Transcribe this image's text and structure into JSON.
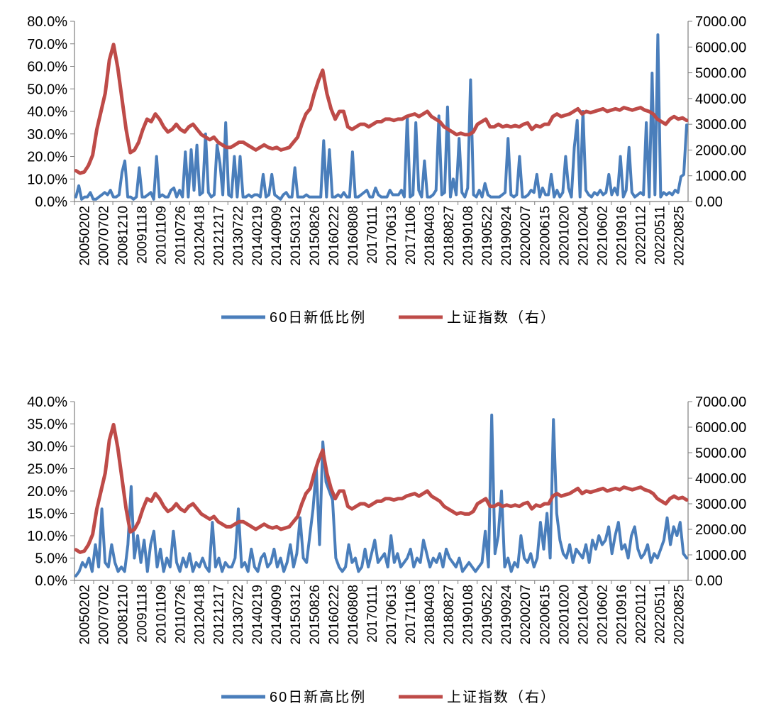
{
  "colors": {
    "blue": "#4a7ebb",
    "red": "#be4b48",
    "axis": "#7f7f7f"
  },
  "chart_data": [
    {
      "type": "line",
      "y_left": {
        "ticks": [
          "0.0%",
          "10.0%",
          "20.0%",
          "30.0%",
          "40.0%",
          "50.0%",
          "60.0%",
          "70.0%",
          "80.0%"
        ],
        "lim": [
          0,
          80
        ]
      },
      "y_right": {
        "ticks": [
          "0.00",
          "1000.00",
          "2000.00",
          "3000.00",
          "4000.00",
          "5000.00",
          "6000.00",
          "7000.00"
        ],
        "lim": [
          0,
          7000
        ]
      },
      "x_ticks": [
        "20050202",
        "20070702",
        "20081210",
        "20091118",
        "20101109",
        "20110726",
        "20120418",
        "20121217",
        "20130722",
        "20140219",
        "20140909",
        "20150312",
        "20150826",
        "20160222",
        "20160808",
        "20170111",
        "20170613",
        "20171106",
        "20180403",
        "20180827",
        "20190108",
        "20190522",
        "20190924",
        "20200207",
        "20200615",
        "20201020",
        "20210204",
        "20210602",
        "20210916",
        "20220112",
        "20220511",
        "20220825"
      ],
      "series": [
        {
          "name": "60日新低比例",
          "axis": "left",
          "color": "blue",
          "values": [
            2,
            7,
            1,
            2,
            2,
            4,
            1,
            1,
            2,
            3,
            4,
            3,
            5,
            2,
            2,
            3,
            13,
            18,
            2,
            2,
            1,
            2,
            15,
            2,
            2,
            3,
            4,
            1,
            20,
            2,
            3,
            2,
            2,
            5,
            6,
            2,
            5,
            2,
            22,
            2,
            23,
            5,
            25,
            3,
            4,
            30,
            4,
            2,
            3,
            25,
            17,
            3,
            35,
            3,
            2,
            20,
            2,
            20,
            2,
            2,
            3,
            2,
            3,
            3,
            2,
            12,
            2,
            3,
            12,
            3,
            2,
            1,
            3,
            4,
            2,
            2,
            15,
            2,
            2,
            2,
            3,
            2,
            2,
            2,
            2,
            2,
            27,
            2,
            23,
            2,
            2,
            3,
            2,
            4,
            2,
            2,
            22,
            2,
            2,
            3,
            4,
            5,
            2,
            2,
            6,
            3,
            2,
            2,
            2,
            5,
            3,
            3,
            3,
            5,
            2,
            38,
            2,
            3,
            35,
            5,
            2,
            18,
            2,
            2,
            3,
            5,
            38,
            3,
            4,
            42,
            2,
            10,
            3,
            28,
            4,
            2,
            6,
            54,
            3,
            2,
            5,
            2,
            8,
            3,
            2,
            2,
            2,
            2,
            3,
            4,
            28,
            3,
            2,
            3,
            20,
            2,
            2,
            3,
            5,
            4,
            12,
            2,
            6,
            3,
            3,
            12,
            2,
            5,
            2,
            4,
            20,
            6,
            2,
            24,
            36,
            2,
            40,
            5,
            3,
            2,
            4,
            3,
            5,
            3,
            4,
            12,
            3,
            6,
            3,
            20,
            2,
            5,
            24,
            4,
            2,
            3,
            4,
            3,
            35,
            2,
            57,
            3,
            74,
            2,
            4,
            3,
            4,
            3,
            5,
            4,
            11,
            12,
            34
          ]
        },
        {
          "name": "上证指数（右）",
          "axis": "right",
          "color": "red",
          "values": [
            1200,
            1100,
            1150,
            1400,
            1800,
            2800,
            3500,
            4200,
            5500,
            6100,
            5200,
            4000,
            2800,
            1900,
            2000,
            2300,
            2800,
            3200,
            3100,
            3400,
            3200,
            2900,
            2700,
            2800,
            3000,
            2800,
            2700,
            2900,
            3000,
            2800,
            2600,
            2500,
            2400,
            2500,
            2300,
            2200,
            2100,
            2100,
            2200,
            2300,
            2300,
            2200,
            2100,
            2000,
            2100,
            2200,
            2100,
            2050,
            2100,
            2000,
            2050,
            2100,
            2300,
            2500,
            3000,
            3400,
            3600,
            4200,
            4700,
            5100,
            4200,
            3600,
            3200,
            3500,
            3500,
            2900,
            2800,
            2900,
            3000,
            3000,
            2900,
            3000,
            3100,
            3100,
            3200,
            3200,
            3150,
            3200,
            3200,
            3300,
            3350,
            3400,
            3300,
            3400,
            3500,
            3300,
            3200,
            3100,
            2900,
            2800,
            2700,
            2600,
            2650,
            2600,
            2600,
            2700,
            3000,
            3100,
            3200,
            2900,
            2900,
            3000,
            2900,
            2950,
            2900,
            2950,
            2900,
            3000,
            3050,
            2800,
            2950,
            2900,
            3000,
            3000,
            3300,
            3400,
            3300,
            3350,
            3400,
            3500,
            3600,
            3400,
            3500,
            3450,
            3500,
            3550,
            3600,
            3500,
            3550,
            3600,
            3550,
            3650,
            3600,
            3550,
            3600,
            3650,
            3550,
            3500,
            3400,
            3200,
            3100,
            3000,
            3200,
            3300,
            3200,
            3250,
            3150
          ]
        }
      ],
      "legend": {
        "position": "bottom",
        "entries": [
          "60日新低比例",
          "上证指数（右）"
        ]
      }
    },
    {
      "type": "line",
      "y_left": {
        "ticks": [
          "0.0%",
          "5.0%",
          "10.0%",
          "15.0%",
          "20.0%",
          "25.0%",
          "30.0%",
          "35.0%",
          "40.0%"
        ],
        "lim": [
          0,
          40
        ]
      },
      "y_right": {
        "ticks": [
          "0.00",
          "1000.00",
          "2000.00",
          "3000.00",
          "4000.00",
          "5000.00",
          "6000.00",
          "7000.00"
        ],
        "lim": [
          0,
          7000
        ]
      },
      "x_ticks": [
        "20050202",
        "20070702",
        "20081210",
        "20091118",
        "20101109",
        "20110726",
        "20120418",
        "20121217",
        "20130722",
        "20140219",
        "20140909",
        "20150312",
        "20150826",
        "20160222",
        "20160808",
        "20170111",
        "20170613",
        "20171106",
        "20180403",
        "20180827",
        "20190108",
        "20190522",
        "20190924",
        "20200207",
        "20200615",
        "20201020",
        "20210204",
        "20210602",
        "20210916",
        "20220112",
        "20220511",
        "20220825"
      ],
      "series": [
        {
          "name": "60日新高比例",
          "axis": "left",
          "color": "blue",
          "values": [
            1,
            2,
            4,
            3,
            5,
            2,
            8,
            3,
            16,
            4,
            3,
            8,
            4,
            2,
            3,
            2,
            8,
            21,
            5,
            10,
            4,
            9,
            2,
            8,
            11,
            3,
            7,
            2,
            5,
            3,
            11,
            4,
            2,
            5,
            3,
            6,
            2,
            4,
            3,
            5,
            3,
            2,
            13,
            3,
            5,
            2,
            4,
            3,
            3,
            5,
            16,
            3,
            4,
            2,
            7,
            3,
            2,
            5,
            6,
            3,
            4,
            7,
            3,
            5,
            2,
            4,
            8,
            3,
            6,
            14,
            5,
            4,
            10,
            16,
            25,
            8,
            31,
            22,
            20,
            18,
            5,
            3,
            2,
            3,
            8,
            4,
            5,
            2,
            3,
            7,
            3,
            6,
            9,
            4,
            5,
            6,
            3,
            10,
            4,
            6,
            3,
            4,
            5,
            7,
            3,
            5,
            4,
            9,
            6,
            3,
            5,
            4,
            6,
            3,
            7,
            5,
            4,
            3,
            5,
            2,
            3,
            4,
            3,
            2,
            3,
            4,
            11,
            3,
            37,
            6,
            10,
            20,
            3,
            5,
            2,
            4,
            3,
            10,
            5,
            4,
            6,
            3,
            5,
            13,
            7,
            15,
            5,
            36,
            15,
            9,
            6,
            5,
            8,
            4,
            7,
            6,
            5,
            8,
            4,
            9,
            7,
            10,
            8,
            9,
            12,
            6,
            10,
            13,
            7,
            8,
            5,
            10,
            12,
            7,
            5,
            6,
            8,
            4,
            6,
            5,
            7,
            9,
            14,
            8,
            12,
            10,
            13,
            6,
            5
          ]
        },
        {
          "name": "上证指数（右）",
          "axis": "right",
          "color": "red",
          "values": [
            1200,
            1100,
            1150,
            1400,
            1800,
            2800,
            3500,
            4200,
            5500,
            6100,
            5200,
            4000,
            2800,
            1900,
            2000,
            2300,
            2800,
            3200,
            3100,
            3400,
            3200,
            2900,
            2700,
            2800,
            3000,
            2800,
            2700,
            2900,
            3000,
            2800,
            2600,
            2500,
            2400,
            2500,
            2300,
            2200,
            2100,
            2100,
            2200,
            2300,
            2300,
            2200,
            2100,
            2000,
            2100,
            2200,
            2100,
            2050,
            2100,
            2000,
            2050,
            2100,
            2300,
            2500,
            3000,
            3400,
            3600,
            4200,
            4700,
            5100,
            4200,
            3600,
            3200,
            3500,
            3500,
            2900,
            2800,
            2900,
            3000,
            3000,
            2900,
            3000,
            3100,
            3100,
            3200,
            3200,
            3150,
            3200,
            3200,
            3300,
            3350,
            3400,
            3300,
            3400,
            3500,
            3300,
            3200,
            3100,
            2900,
            2800,
            2700,
            2600,
            2650,
            2600,
            2600,
            2700,
            3000,
            3100,
            3200,
            2900,
            2900,
            3000,
            2900,
            2950,
            2900,
            2950,
            2900,
            3000,
            3050,
            2800,
            2950,
            2900,
            3000,
            3000,
            3300,
            3400,
            3300,
            3350,
            3400,
            3500,
            3600,
            3400,
            3500,
            3450,
            3500,
            3550,
            3600,
            3500,
            3550,
            3600,
            3550,
            3650,
            3600,
            3550,
            3600,
            3650,
            3550,
            3500,
            3400,
            3200,
            3100,
            3000,
            3200,
            3300,
            3200,
            3250,
            3150
          ]
        }
      ],
      "legend": {
        "position": "bottom",
        "entries": [
          "60日新高比例",
          "上证指数（右）"
        ]
      }
    }
  ]
}
